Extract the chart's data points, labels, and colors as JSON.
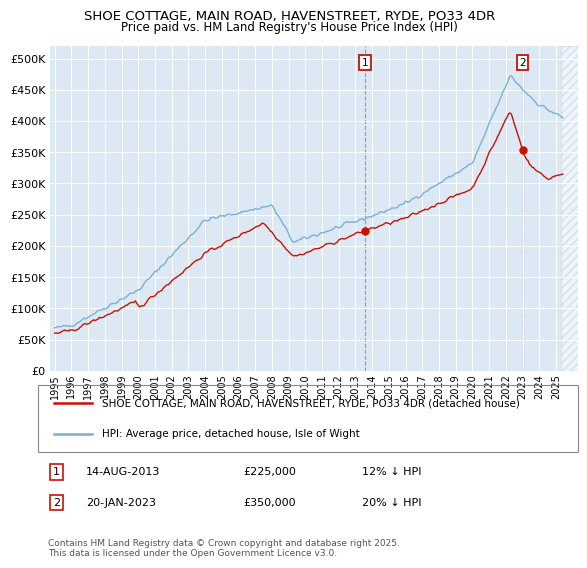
{
  "title1": "SHOE COTTAGE, MAIN ROAD, HAVENSTREET, RYDE, PO33 4DR",
  "title2": "Price paid vs. HM Land Registry's House Price Index (HPI)",
  "plot_bg": "#dce9f5",
  "hpi_color": "#7ab0d4",
  "price_color": "#cc1100",
  "marker1_date": "14-AUG-2013",
  "marker1_price": 225000,
  "marker1_pct": "12% ↓ HPI",
  "marker2_date": "20-JAN-2023",
  "marker2_price": 350000,
  "marker2_pct": "20% ↓ HPI",
  "legend1": "SHOE COTTAGE, MAIN ROAD, HAVENSTREET, RYDE, PO33 4DR (detached house)",
  "legend2": "HPI: Average price, detached house, Isle of Wight",
  "footer": "Contains HM Land Registry data © Crown copyright and database right 2025.\nThis data is licensed under the Open Government Licence v3.0.",
  "ylim": [
    0,
    520000
  ],
  "yticks": [
    0,
    50000,
    100000,
    150000,
    200000,
    250000,
    300000,
    350000,
    400000,
    450000,
    500000
  ],
  "xlim_start": 1994.7,
  "xlim_end": 2026.3
}
